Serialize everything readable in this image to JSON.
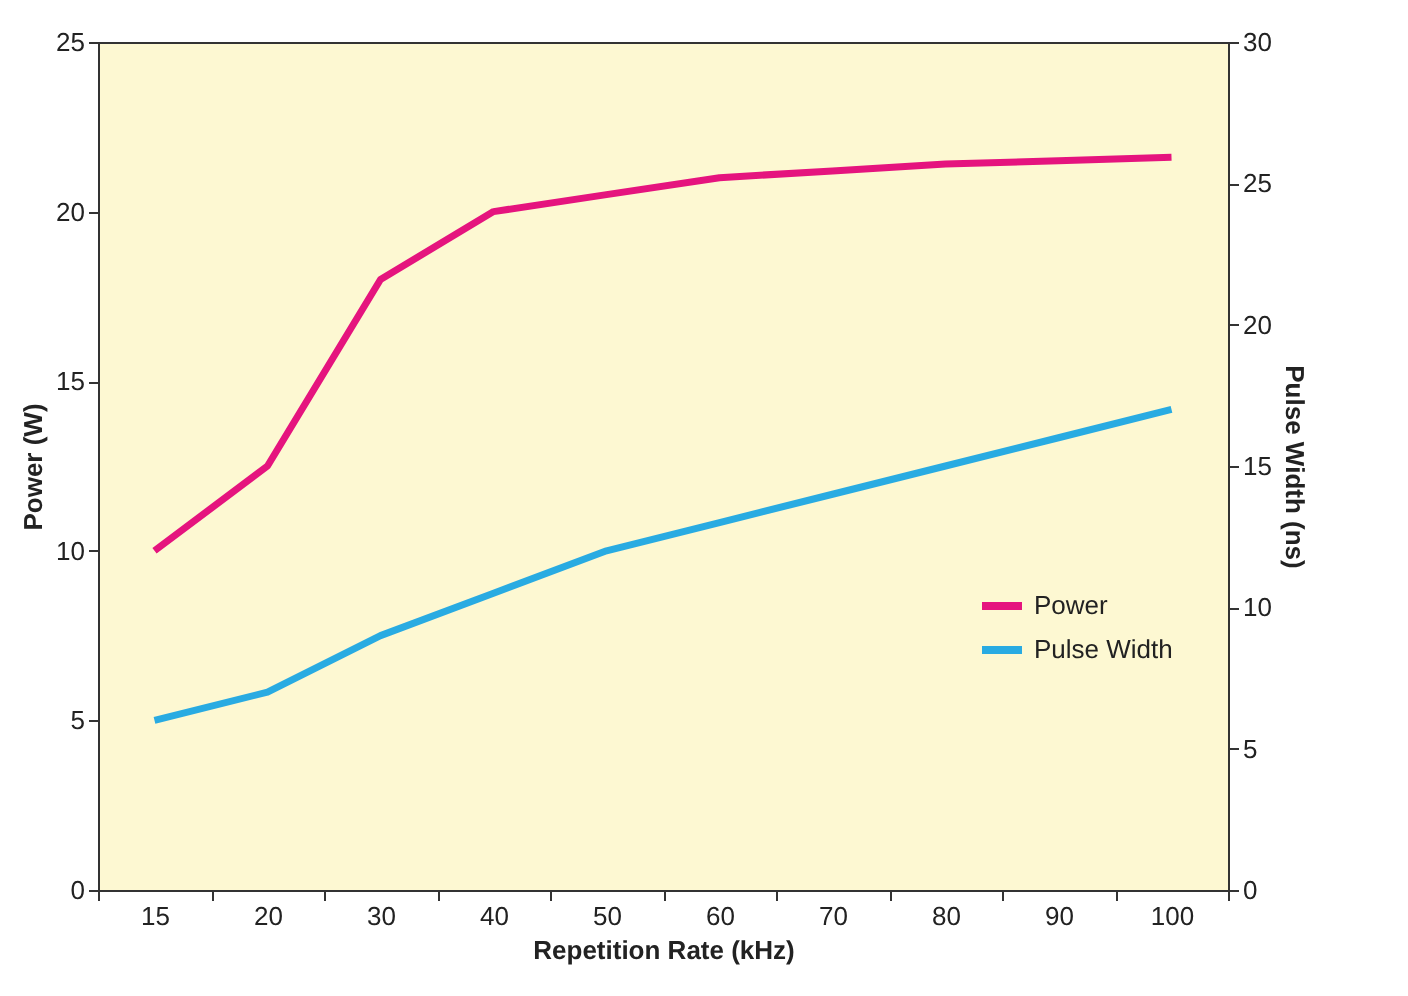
{
  "chart_data": {
    "type": "line",
    "xlabel": "Repetition Rate (kHz)",
    "ylabel": "Power (W)",
    "y2label": "Pulse Width (ns)",
    "categories": [
      "15",
      "20",
      "30",
      "40",
      "50",
      "60",
      "70",
      "80",
      "90",
      "100"
    ],
    "series": [
      {
        "name": "Power",
        "color": "#e5147e",
        "values": [
          10,
          12.5,
          18,
          20,
          20.5,
          21,
          21.2,
          21.4,
          21.5,
          21.6
        ]
      },
      {
        "name": "Pulse Width",
        "color": "#29abe2",
        "axis": "y2",
        "values": [
          6,
          7,
          9,
          10.5,
          12,
          13,
          14,
          15,
          16,
          17
        ]
      }
    ],
    "ylim": [
      0,
      25
    ],
    "yticks": [
      0,
      5,
      10,
      15,
      20,
      25
    ],
    "y2lim": [
      0,
      30
    ],
    "y2ticks": [
      0,
      5,
      10,
      15,
      20,
      25,
      30
    ],
    "grid": false,
    "legend": "right",
    "marker": "none",
    "line_style": "solid"
  }
}
